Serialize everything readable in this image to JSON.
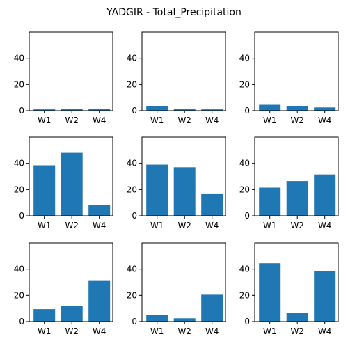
{
  "figure": {
    "title": "YADGIR - Total_Precipitation",
    "bar_color": "#1f77b4"
  },
  "chart_data": [
    {
      "type": "bar",
      "categories": [
        "W1",
        "W2",
        "W4"
      ],
      "values": [
        1.0,
        1.5,
        1.5
      ],
      "ylim": [
        0,
        60
      ],
      "yticks": [
        0,
        20,
        40
      ]
    },
    {
      "type": "bar",
      "categories": [
        "W1",
        "W2",
        "W4"
      ],
      "values": [
        3.5,
        1.5,
        1.0
      ],
      "ylim": [
        0,
        60
      ],
      "yticks": [
        0,
        20,
        40
      ]
    },
    {
      "type": "bar",
      "categories": [
        "W1",
        "W2",
        "W4"
      ],
      "values": [
        4.5,
        3.5,
        2.5
      ],
      "ylim": [
        0,
        60
      ],
      "yticks": [
        0,
        20,
        40
      ]
    },
    {
      "type": "bar",
      "categories": [
        "W1",
        "W2",
        "W4"
      ],
      "values": [
        38.5,
        48.0,
        8.0
      ],
      "ylim": [
        0,
        60
      ],
      "yticks": [
        0,
        20,
        40
      ]
    },
    {
      "type": "bar",
      "categories": [
        "W1",
        "W2",
        "W4"
      ],
      "values": [
        39.0,
        37.0,
        16.5
      ],
      "ylim": [
        0,
        60
      ],
      "yticks": [
        0,
        20,
        40
      ]
    },
    {
      "type": "bar",
      "categories": [
        "W1",
        "W2",
        "W4"
      ],
      "values": [
        21.5,
        26.5,
        31.5
      ],
      "ylim": [
        0,
        60
      ],
      "yticks": [
        0,
        20,
        40
      ]
    },
    {
      "type": "bar",
      "categories": [
        "W1",
        "W2",
        "W4"
      ],
      "values": [
        9.5,
        12.0,
        31.0
      ],
      "ylim": [
        0,
        60
      ],
      "yticks": [
        0,
        20,
        40
      ]
    },
    {
      "type": "bar",
      "categories": [
        "W1",
        "W2",
        "W4"
      ],
      "values": [
        5.0,
        2.5,
        20.5
      ],
      "ylim": [
        0,
        60
      ],
      "yticks": [
        0,
        20,
        40
      ]
    },
    {
      "type": "bar",
      "categories": [
        "W1",
        "W2",
        "W4"
      ],
      "values": [
        44.5,
        6.5,
        38.5
      ],
      "ylim": [
        0,
        60
      ],
      "yticks": [
        0,
        20,
        40
      ]
    }
  ]
}
